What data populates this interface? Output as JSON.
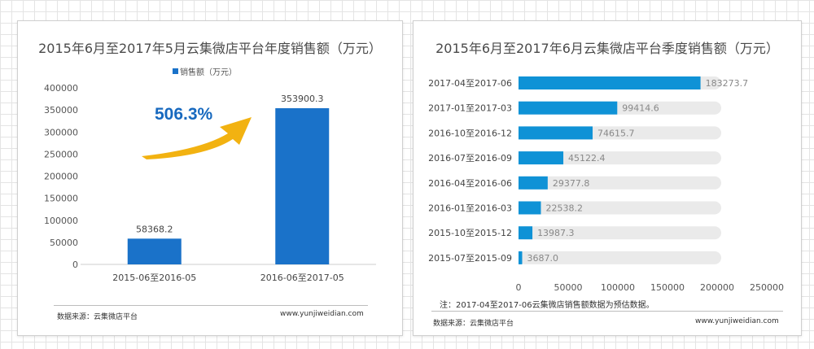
{
  "chart_data": [
    {
      "type": "bar",
      "title": "2015年6月至2017年5月云集微店平台年度销售额（万元）",
      "legend": {
        "label": "销售额（万元）",
        "color": "#1a72c9",
        "placement": "top-center"
      },
      "categories": [
        "2015-06至2016-05",
        "2016-06至2017-05"
      ],
      "values": [
        58368.2,
        353900.3
      ],
      "data_labels": [
        "58368.2",
        "353900.3"
      ],
      "ylim": [
        0,
        400000
      ],
      "yticks": [
        0,
        50000,
        100000,
        150000,
        200000,
        250000,
        300000,
        350000,
        400000
      ],
      "ytick_labels": [
        "0",
        "50000",
        "100000",
        "150000",
        "200000",
        "250000",
        "300000",
        "350000",
        "400000"
      ],
      "annotation": {
        "text": "506.3%",
        "color": "#1769bf",
        "arrow_color": "#f2b211"
      },
      "bar_color": "#1a72c9",
      "grid": false,
      "source": "数据来源：云集微店平台",
      "website": "www.yunjiweidian.com"
    },
    {
      "type": "bar",
      "orientation": "horizontal",
      "title": "2015年6月至2017年6月云集微店平台季度销售额（万元）",
      "categories": [
        "2017-04至2017-06",
        "2017-01至2017-03",
        "2016-10至2016-12",
        "2016-07至2016-09",
        "2016-04至2016-06",
        "2016-01至2016-03",
        "2015-10至2015-12",
        "2015-07至2015-09"
      ],
      "values": [
        183273.7,
        99414.6,
        74615.7,
        45122.4,
        29377.8,
        22538.2,
        13987.3,
        3687.0
      ],
      "data_labels": [
        "183273.7",
        "99414.6",
        "74615.7",
        "45122.4",
        "29377.8",
        "22538.2",
        "13987.3",
        "3687.0"
      ],
      "xlim": [
        0,
        250000
      ],
      "xticks": [
        0,
        50000,
        100000,
        150000,
        200000,
        250000
      ],
      "xtick_labels": [
        "0",
        "50000",
        "100000",
        "150000",
        "200000",
        "250000"
      ],
      "bar_color": "#0f92d6",
      "track_color": "#eaeaea",
      "grid": false,
      "note": "注：2017-04至2017-06云集微店销售额数据为预估数据。",
      "source": "数据来源：云集微店平台",
      "website": "www.yunjiweidian.com"
    }
  ]
}
